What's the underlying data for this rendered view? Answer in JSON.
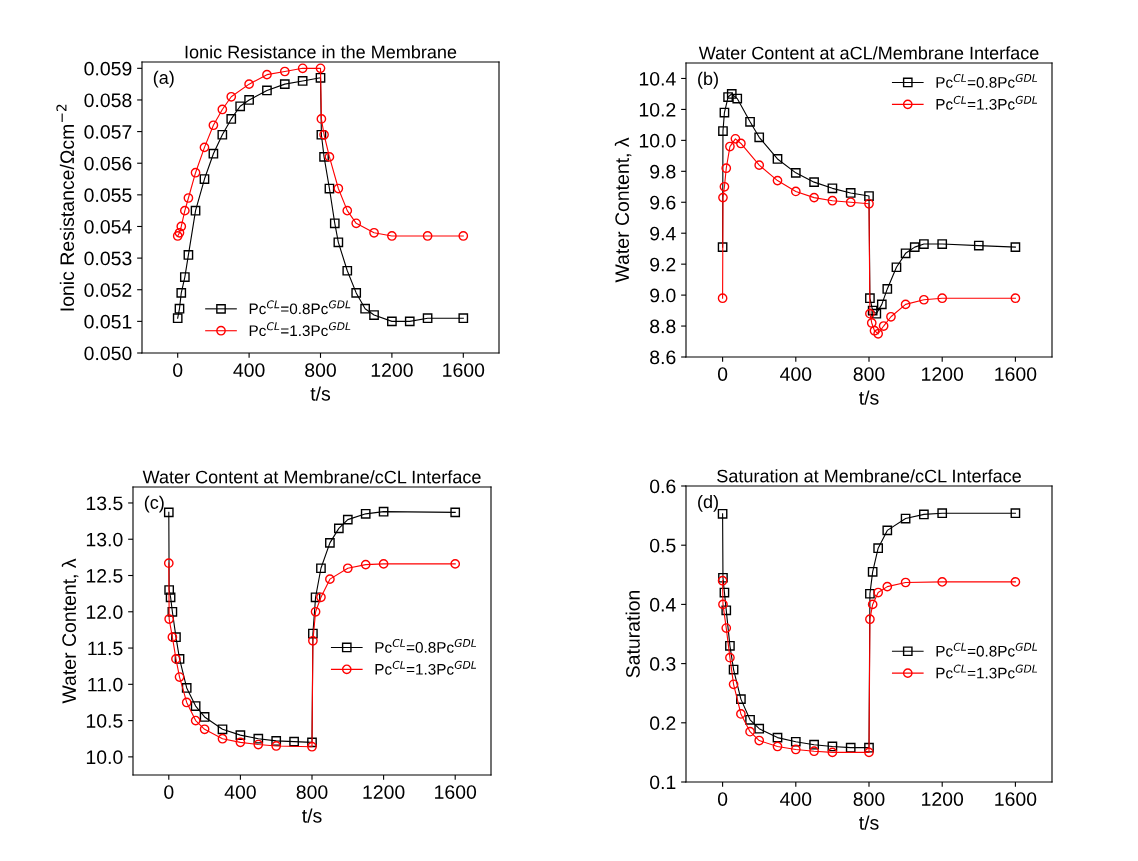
{
  "chart_data": [
    {
      "type": "line",
      "title": "Ionic Resistance in the Membrane",
      "xlabel": "t/s",
      "ylabel": "Ionic Resistance/Ωcm$^{−2}$",
      "annotations": [
        "(a)"
      ],
      "xlim": [
        -200,
        1800
      ],
      "xticks": [
        0,
        400,
        800,
        1200,
        1600
      ],
      "ylim": [
        0.05,
        0.0592
      ],
      "yticks": [
        {
          "value": 0.05,
          "label": "0.050"
        },
        0.051,
        0.052,
        0.053,
        0.054,
        0.055,
        0.056,
        0.057,
        0.058,
        0.059
      ],
      "legend": "bottom",
      "grid": false,
      "series": [
        {
          "name": "Pc$^{CL}$=0.8Pc$^{GDL}$",
          "color": "#000000",
          "marker": "square",
          "x": [
            0,
            10,
            20,
            40,
            60,
            100,
            150,
            200,
            250,
            300,
            350,
            400,
            500,
            600,
            700,
            800,
            805,
            820,
            850,
            880,
            900,
            950,
            1000,
            1050,
            1100,
            1200,
            1300,
            1400,
            1600
          ],
          "values": [
            0.0511,
            0.0514,
            0.0519,
            0.0524,
            0.0531,
            0.0545,
            0.0555,
            0.0563,
            0.0569,
            0.0574,
            0.0578,
            0.058,
            0.0583,
            0.0585,
            0.0586,
            0.0587,
            0.0569,
            0.0562,
            0.0552,
            0.0541,
            0.0535,
            0.0526,
            0.0519,
            0.0514,
            0.0512,
            0.051,
            0.051,
            0.0511,
            0.0511
          ]
        },
        {
          "name": "Pc$^{CL}$=1.3Pc$^{GDL}$",
          "color": "#ff0000",
          "marker": "circle",
          "x": [
            0,
            10,
            20,
            40,
            60,
            100,
            150,
            200,
            250,
            300,
            400,
            500,
            600,
            700,
            800,
            805,
            820,
            850,
            900,
            950,
            1000,
            1100,
            1200,
            1400,
            1600
          ],
          "values": [
            0.0537,
            0.0538,
            0.054,
            0.0545,
            0.0549,
            0.0557,
            0.0565,
            0.0572,
            0.0577,
            0.0581,
            0.0585,
            0.0588,
            0.0589,
            0.059,
            0.059,
            0.0574,
            0.0569,
            0.0562,
            0.0552,
            0.0545,
            0.0541,
            0.0538,
            0.0537,
            0.0537,
            0.0537
          ]
        }
      ]
    },
    {
      "type": "line",
      "title": "Water Content at aCL/Membrane Interface",
      "xlabel": "t/s",
      "ylabel": "Water Content, λ",
      "annotations": [
        "(b)"
      ],
      "xlim": [
        -200,
        1800
      ],
      "xticks": [
        0,
        400,
        800,
        1200,
        1600
      ],
      "ylim": [
        8.6,
        10.5
      ],
      "yticks": [
        {
          "value": 8.6,
          "label": "8.6"
        },
        {
          "value": 8.8,
          "label": "8.8"
        },
        {
          "value": 9.0,
          "label": "9.0"
        },
        {
          "value": 9.2,
          "label": "9.2"
        },
        {
          "value": 9.4,
          "label": "9.4"
        },
        {
          "value": 9.6,
          "label": "9.6"
        },
        {
          "value": 9.8,
          "label": "9.8"
        },
        {
          "value": 10.0,
          "label": "10.0"
        },
        {
          "value": 10.2,
          "label": "10.2"
        },
        {
          "value": 10.4,
          "label": "10.4"
        }
      ],
      "legend": "top right",
      "grid": false,
      "series": [
        {
          "name": "Pc$^{CL}$=0.8Pc$^{GDL}$",
          "color": "#000000",
          "marker": "square",
          "x": [
            0,
            2,
            10,
            30,
            50,
            80,
            150,
            200,
            300,
            400,
            500,
            600,
            700,
            800,
            805,
            820,
            840,
            870,
            900,
            950,
            1000,
            1050,
            1100,
            1200,
            1400,
            1600
          ],
          "values": [
            9.31,
            10.06,
            10.18,
            10.28,
            10.3,
            10.27,
            10.12,
            10.02,
            9.88,
            9.79,
            9.73,
            9.69,
            9.66,
            9.64,
            8.98,
            8.9,
            8.88,
            8.94,
            9.04,
            9.18,
            9.27,
            9.31,
            9.33,
            9.33,
            9.32,
            9.31
          ]
        },
        {
          "name": "Pc$^{CL}$=1.3Pc$^{GDL}$",
          "color": "#ff0000",
          "marker": "circle",
          "x": [
            0,
            2,
            10,
            20,
            40,
            70,
            100,
            200,
            300,
            400,
            500,
            600,
            700,
            800,
            805,
            815,
            830,
            850,
            880,
            920,
            1000,
            1100,
            1200,
            1600
          ],
          "values": [
            8.98,
            9.63,
            9.7,
            9.82,
            9.96,
            10.01,
            9.98,
            9.84,
            9.74,
            9.67,
            9.63,
            9.61,
            9.6,
            9.59,
            8.88,
            8.82,
            8.77,
            8.75,
            8.8,
            8.86,
            8.94,
            8.97,
            8.98,
            8.98
          ]
        }
      ]
    },
    {
      "type": "line",
      "title": "Water Content at Membrane/cCL Interface",
      "xlabel": "t/s",
      "ylabel": "Water Content, λ",
      "annotations": [
        "(c)"
      ],
      "xlim": [
        -200,
        1800
      ],
      "xticks": [
        0,
        400,
        800,
        1200,
        1600
      ],
      "ylim": [
        9.75,
        13.72
      ],
      "yticks": [
        {
          "value": 10.0,
          "label": "10.0"
        },
        10.5,
        {
          "value": 11.0,
          "label": "11.0"
        },
        11.5,
        {
          "value": 12.0,
          "label": "12.0"
        },
        12.5,
        {
          "value": 13.0,
          "label": "13.0"
        },
        13.5
      ],
      "legend": "right",
      "grid": false,
      "series": [
        {
          "name": "Pc$^{CL}$=0.8Pc$^{GDL}$",
          "color": "#000000",
          "marker": "square",
          "x": [
            0,
            2,
            10,
            20,
            40,
            60,
            100,
            150,
            200,
            300,
            400,
            500,
            600,
            700,
            800,
            805,
            820,
            850,
            900,
            950,
            1000,
            1100,
            1200,
            1600
          ],
          "values": [
            13.37,
            12.3,
            12.2,
            12.0,
            11.65,
            11.35,
            10.95,
            10.7,
            10.55,
            10.38,
            10.3,
            10.25,
            10.22,
            10.21,
            10.2,
            11.7,
            12.2,
            12.6,
            12.95,
            13.15,
            13.27,
            13.35,
            13.38,
            13.37
          ]
        },
        {
          "name": "Pc$^{CL}$=1.3Pc$^{GDL}$",
          "color": "#ff0000",
          "marker": "circle",
          "x": [
            0,
            2,
            20,
            40,
            60,
            100,
            150,
            200,
            300,
            400,
            500,
            600,
            800,
            805,
            820,
            850,
            900,
            1000,
            1100,
            1200,
            1600
          ],
          "values": [
            12.67,
            11.9,
            11.65,
            11.35,
            11.1,
            10.75,
            10.5,
            10.38,
            10.25,
            10.2,
            10.17,
            10.15,
            10.14,
            11.6,
            12.0,
            12.2,
            12.45,
            12.6,
            12.65,
            12.66,
            12.66
          ]
        }
      ]
    },
    {
      "type": "line",
      "title": "Saturation at Membrane/cCL Interface",
      "xlabel": "t/s",
      "ylabel": "Saturation",
      "annotations": [
        "(d)"
      ],
      "xlim": [
        -200,
        1800
      ],
      "xticks": [
        0,
        400,
        800,
        1200,
        1600
      ],
      "ylim": [
        0.1,
        0.6
      ],
      "yticks": [
        0.1,
        0.2,
        0.3,
        0.4,
        0.5,
        0.6
      ],
      "legend": "right",
      "grid": false,
      "series": [
        {
          "name": "Pc$^{CL}$=0.8Pc$^{GDL}$",
          "color": "#000000",
          "marker": "square",
          "x": [
            0,
            2,
            10,
            20,
            40,
            60,
            100,
            150,
            200,
            300,
            400,
            500,
            600,
            700,
            800,
            805,
            820,
            850,
            900,
            1000,
            1100,
            1200,
            1600
          ],
          "values": [
            0.553,
            0.445,
            0.42,
            0.39,
            0.33,
            0.29,
            0.24,
            0.205,
            0.19,
            0.175,
            0.168,
            0.163,
            0.16,
            0.158,
            0.158,
            0.418,
            0.455,
            0.495,
            0.525,
            0.545,
            0.552,
            0.554,
            0.554
          ]
        },
        {
          "name": "Pc$^{CL}$=1.3Pc$^{GDL}$",
          "color": "#ff0000",
          "marker": "circle",
          "x": [
            0,
            2,
            20,
            40,
            60,
            100,
            150,
            200,
            300,
            400,
            500,
            600,
            800,
            805,
            820,
            850,
            900,
            1000,
            1200,
            1600
          ],
          "values": [
            0.44,
            0.4,
            0.36,
            0.31,
            0.265,
            0.215,
            0.185,
            0.17,
            0.16,
            0.155,
            0.152,
            0.15,
            0.15,
            0.375,
            0.4,
            0.42,
            0.43,
            0.437,
            0.438,
            0.438
          ]
        }
      ]
    }
  ]
}
